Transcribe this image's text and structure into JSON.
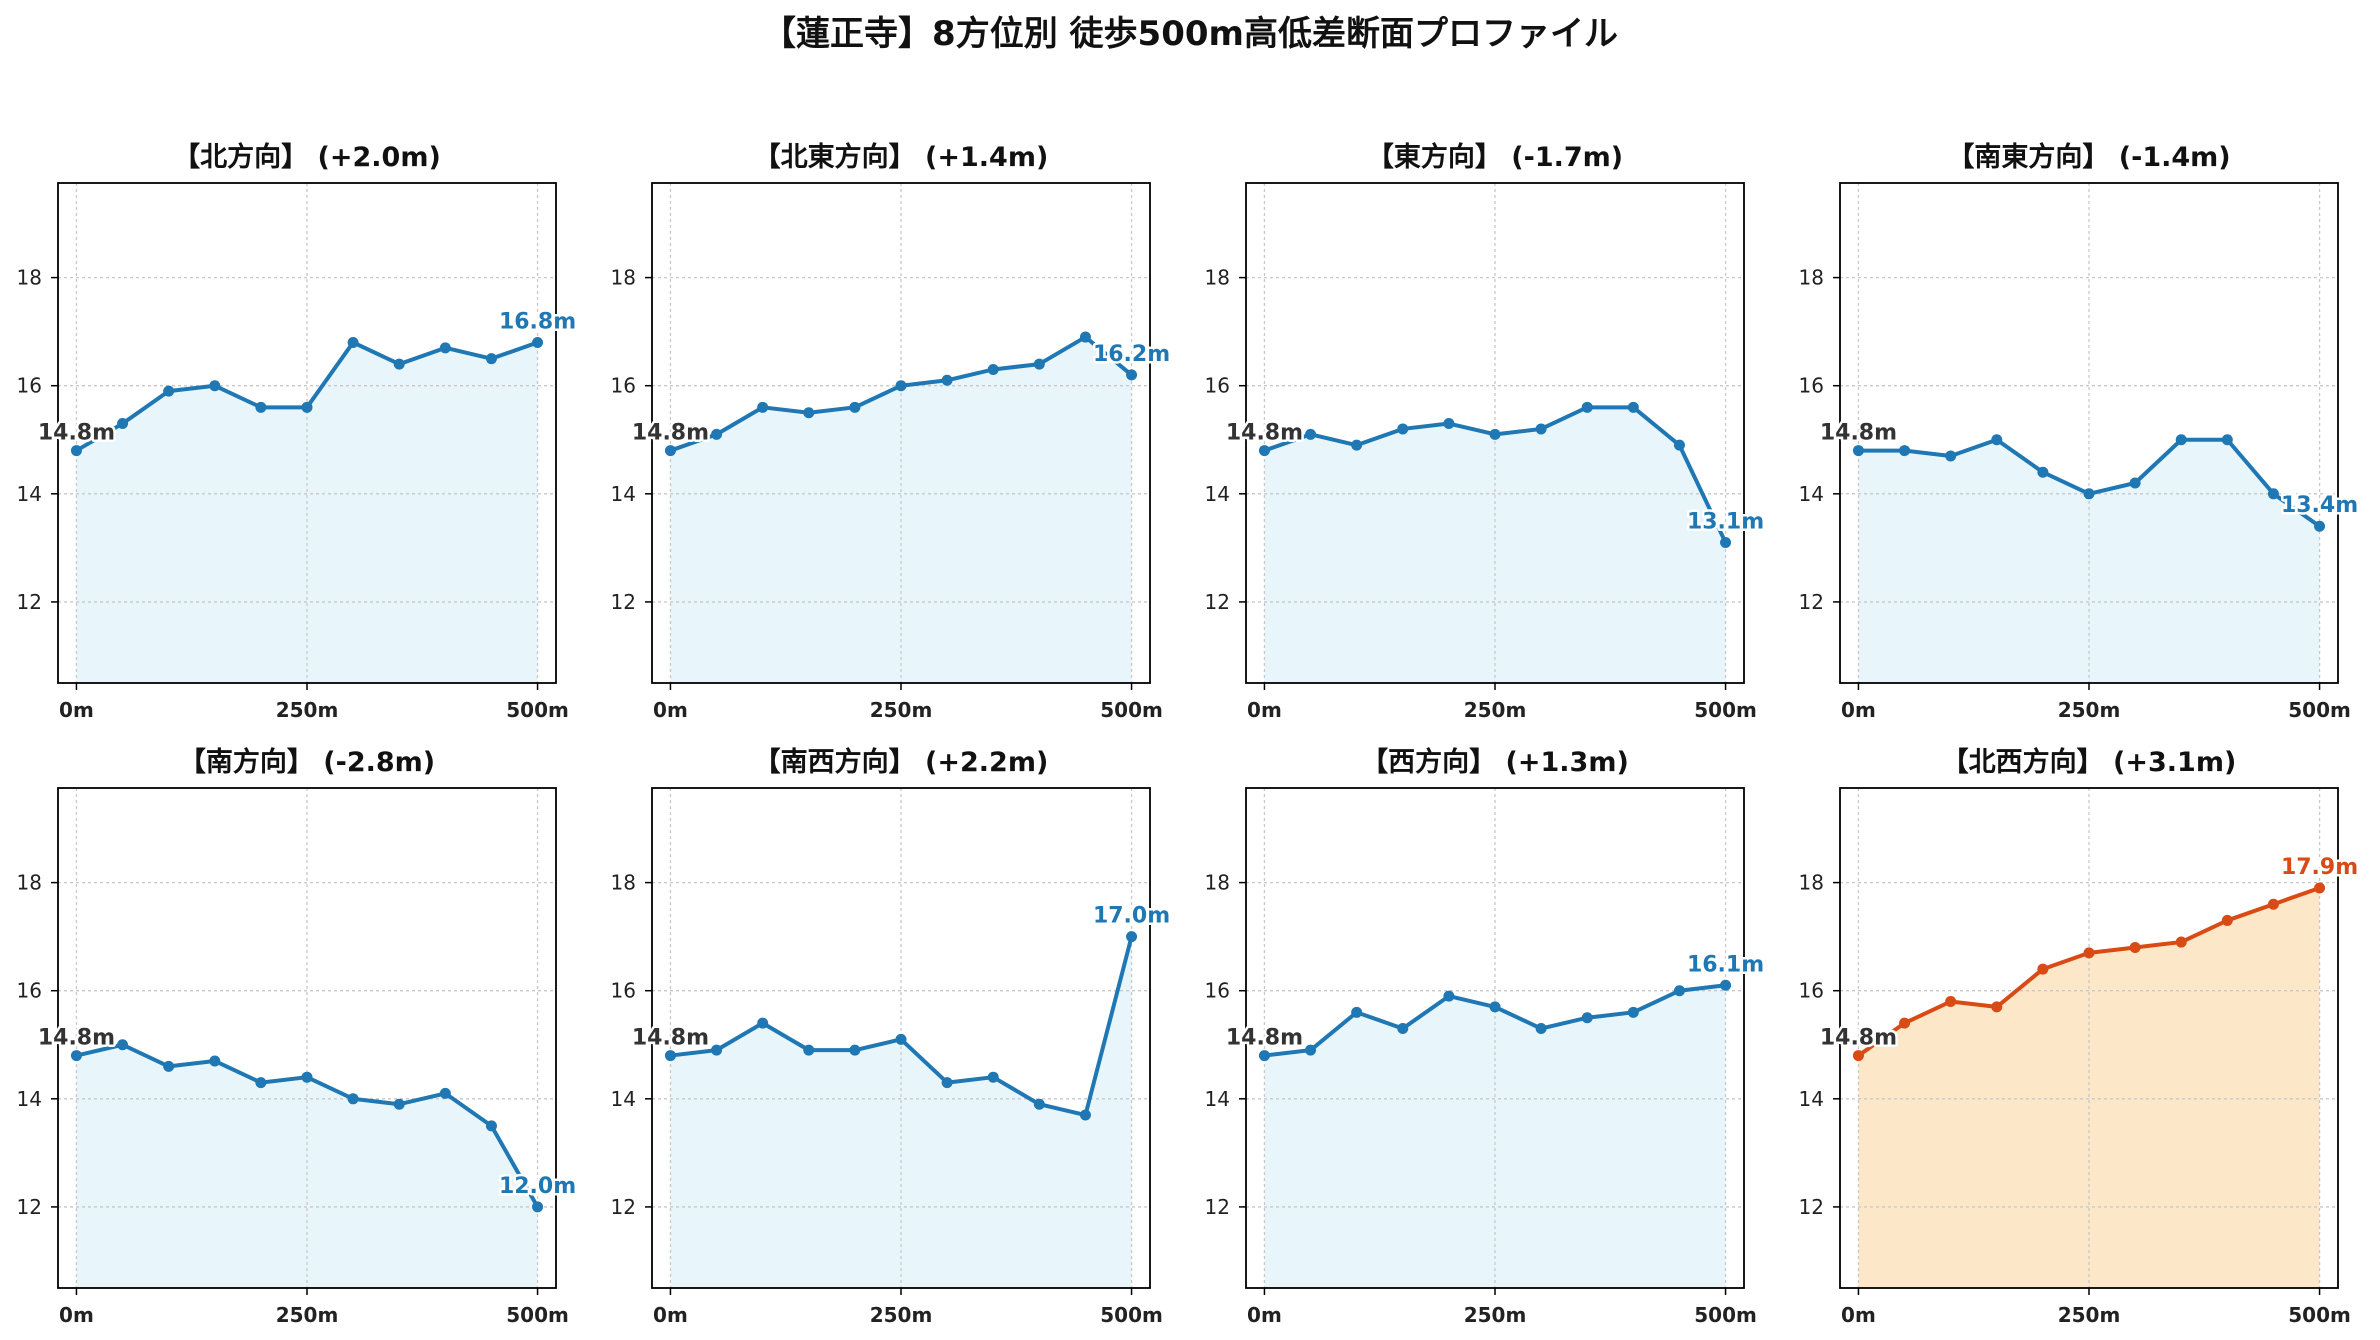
{
  "figure_title": "【蓮正寺】8方位別 徒歩500m高低差断面プロファイル",
  "colors": {
    "normal_line": "#1f77b4",
    "normal_fill": "#e8f5fb",
    "highlight_line": "#d94a14",
    "highlight_fill": "#fde7c9",
    "start_label": "#333333"
  },
  "chart_data": [
    {
      "type": "line",
      "title": "【北方向】 (+2.0m)",
      "x": [
        0,
        50,
        100,
        150,
        200,
        250,
        300,
        350,
        400,
        450,
        500
      ],
      "y": [
        14.8,
        15.3,
        15.9,
        16.0,
        15.6,
        15.6,
        16.8,
        16.4,
        16.7,
        16.5,
        16.8
      ],
      "start_label": "14.8m",
      "end_label": "16.8m",
      "highlight": false,
      "xticks": [
        "0m",
        "250m",
        "500m"
      ],
      "yticks": [
        12,
        14,
        16,
        18
      ],
      "xlim": [
        -20,
        520
      ],
      "ylim": [
        10.5,
        19.75
      ],
      "grid": true
    },
    {
      "type": "line",
      "title": "【北東方向】 (+1.4m)",
      "x": [
        0,
        50,
        100,
        150,
        200,
        250,
        300,
        350,
        400,
        450,
        500
      ],
      "y": [
        14.8,
        15.1,
        15.6,
        15.5,
        15.6,
        16.0,
        16.1,
        16.3,
        16.4,
        16.9,
        16.2
      ],
      "start_label": "14.8m",
      "end_label": "16.2m",
      "highlight": false,
      "xticks": [
        "0m",
        "250m",
        "500m"
      ],
      "yticks": [
        12,
        14,
        16,
        18
      ],
      "xlim": [
        -20,
        520
      ],
      "ylim": [
        10.5,
        19.75
      ],
      "grid": true
    },
    {
      "type": "line",
      "title": "【東方向】 (-1.7m)",
      "x": [
        0,
        50,
        100,
        150,
        200,
        250,
        300,
        350,
        400,
        450,
        500
      ],
      "y": [
        14.8,
        15.1,
        14.9,
        15.2,
        15.3,
        15.1,
        15.2,
        15.6,
        15.6,
        14.9,
        13.1
      ],
      "start_label": "14.8m",
      "end_label": "13.1m",
      "highlight": false,
      "xticks": [
        "0m",
        "250m",
        "500m"
      ],
      "yticks": [
        12,
        14,
        16,
        18
      ],
      "xlim": [
        -20,
        520
      ],
      "ylim": [
        10.5,
        19.75
      ],
      "grid": true
    },
    {
      "type": "line",
      "title": "【南東方向】 (-1.4m)",
      "x": [
        0,
        50,
        100,
        150,
        200,
        250,
        300,
        350,
        400,
        450,
        500
      ],
      "y": [
        14.8,
        14.8,
        14.7,
        15.0,
        14.4,
        14.0,
        14.2,
        15.0,
        15.0,
        14.0,
        13.4
      ],
      "start_label": "14.8m",
      "end_label": "13.4m",
      "highlight": false,
      "xticks": [
        "0m",
        "250m",
        "500m"
      ],
      "yticks": [
        12,
        14,
        16,
        18
      ],
      "xlim": [
        -20,
        520
      ],
      "ylim": [
        10.5,
        19.75
      ],
      "grid": true
    },
    {
      "type": "line",
      "title": "【南方向】 (-2.8m)",
      "x": [
        0,
        50,
        100,
        150,
        200,
        250,
        300,
        350,
        400,
        450,
        500
      ],
      "y": [
        14.8,
        15.0,
        14.6,
        14.7,
        14.3,
        14.4,
        14.0,
        13.9,
        14.1,
        13.5,
        12.0
      ],
      "start_label": "14.8m",
      "end_label": "12.0m",
      "highlight": false,
      "xticks": [
        "0m",
        "250m",
        "500m"
      ],
      "yticks": [
        12,
        14,
        16,
        18
      ],
      "xlim": [
        -20,
        520
      ],
      "ylim": [
        10.5,
        19.75
      ],
      "grid": true
    },
    {
      "type": "line",
      "title": "【南西方向】 (+2.2m)",
      "x": [
        0,
        50,
        100,
        150,
        200,
        250,
        300,
        350,
        400,
        450,
        500
      ],
      "y": [
        14.8,
        14.9,
        15.4,
        14.9,
        14.9,
        15.1,
        14.3,
        14.4,
        13.9,
        13.7,
        17.0
      ],
      "start_label": "14.8m",
      "end_label": "17.0m",
      "highlight": false,
      "xticks": [
        "0m",
        "250m",
        "500m"
      ],
      "yticks": [
        12,
        14,
        16,
        18
      ],
      "xlim": [
        -20,
        520
      ],
      "ylim": [
        10.5,
        19.75
      ],
      "grid": true
    },
    {
      "type": "line",
      "title": "【西方向】 (+1.3m)",
      "x": [
        0,
        50,
        100,
        150,
        200,
        250,
        300,
        350,
        400,
        450,
        500
      ],
      "y": [
        14.8,
        14.9,
        15.6,
        15.3,
        15.9,
        15.7,
        15.3,
        15.5,
        15.6,
        16.0,
        16.1
      ],
      "start_label": "14.8m",
      "end_label": "16.1m",
      "highlight": false,
      "xticks": [
        "0m",
        "250m",
        "500m"
      ],
      "yticks": [
        12,
        14,
        16,
        18
      ],
      "xlim": [
        -20,
        520
      ],
      "ylim": [
        10.5,
        19.75
      ],
      "grid": true
    },
    {
      "type": "line",
      "title": "【北西方向】 (+3.1m)",
      "x": [
        0,
        50,
        100,
        150,
        200,
        250,
        300,
        350,
        400,
        450,
        500
      ],
      "y": [
        14.8,
        15.4,
        15.8,
        15.7,
        16.4,
        16.7,
        16.8,
        16.9,
        17.3,
        17.6,
        17.9
      ],
      "start_label": "14.8m",
      "end_label": "17.9m",
      "highlight": true,
      "xticks": [
        "0m",
        "250m",
        "500m"
      ],
      "yticks": [
        12,
        14,
        16,
        18
      ],
      "xlim": [
        -20,
        520
      ],
      "ylim": [
        10.5,
        19.75
      ],
      "grid": true
    }
  ]
}
